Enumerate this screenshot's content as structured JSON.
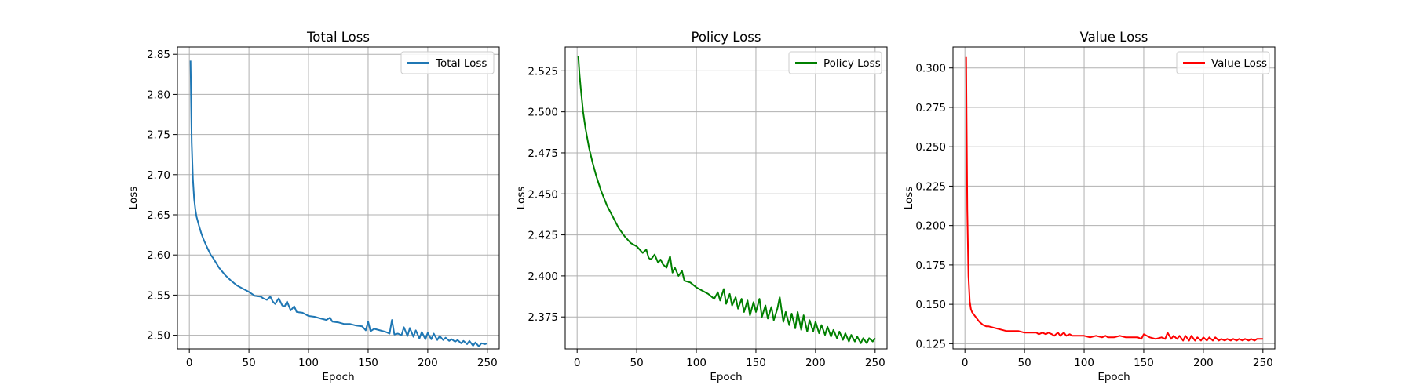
{
  "chart_data": [
    {
      "type": "line",
      "title": "Total Loss",
      "xlabel": "Epoch",
      "ylabel": "Loss",
      "xlim": [
        -10,
        260
      ],
      "ylim": [
        2.483,
        2.859
      ],
      "xticks": [
        0,
        50,
        100,
        150,
        200,
        250
      ],
      "yticks": [
        2.5,
        2.55,
        2.6,
        2.65,
        2.7,
        2.75,
        2.8,
        2.85
      ],
      "ytick_decimals": 2,
      "grid": true,
      "legend_position": "top-right",
      "series": [
        {
          "name": "Total Loss",
          "color": "#1f77b4",
          "x": [
            1,
            2,
            3,
            4,
            5,
            6,
            8,
            10,
            12,
            15,
            18,
            20,
            25,
            30,
            35,
            40,
            45,
            50,
            55,
            60,
            62,
            65,
            68,
            70,
            72,
            75,
            78,
            80,
            82,
            85,
            88,
            90,
            95,
            100,
            105,
            110,
            115,
            118,
            120,
            125,
            130,
            135,
            140,
            145,
            148,
            150,
            152,
            155,
            160,
            165,
            168,
            170,
            172,
            175,
            178,
            180,
            183,
            185,
            188,
            190,
            193,
            195,
            198,
            200,
            203,
            205,
            208,
            210,
            213,
            215,
            218,
            220,
            223,
            225,
            228,
            230,
            233,
            235,
            238,
            240,
            243,
            245,
            248,
            250
          ],
          "y": [
            2.842,
            2.74,
            2.695,
            2.67,
            2.657,
            2.648,
            2.637,
            2.627,
            2.619,
            2.609,
            2.6,
            2.596,
            2.584,
            2.575,
            2.568,
            2.562,
            2.558,
            2.554,
            2.549,
            2.548,
            2.546,
            2.544,
            2.548,
            2.542,
            2.539,
            2.546,
            2.537,
            2.536,
            2.542,
            2.531,
            2.536,
            2.529,
            2.528,
            2.524,
            2.523,
            2.521,
            2.519,
            2.522,
            2.517,
            2.516,
            2.514,
            2.514,
            2.512,
            2.511,
            2.506,
            2.517,
            2.505,
            2.508,
            2.506,
            2.504,
            2.502,
            2.519,
            2.501,
            2.502,
            2.5,
            2.51,
            2.499,
            2.509,
            2.498,
            2.506,
            2.496,
            2.504,
            2.495,
            2.503,
            2.495,
            2.502,
            2.494,
            2.499,
            2.494,
            2.497,
            2.493,
            2.495,
            2.492,
            2.494,
            2.49,
            2.493,
            2.489,
            2.493,
            2.487,
            2.491,
            2.486,
            2.49,
            2.489,
            2.49
          ]
        }
      ]
    },
    {
      "type": "line",
      "title": "Policy Loss",
      "xlabel": "Epoch",
      "ylabel": "Loss",
      "xlim": [
        -10,
        260
      ],
      "ylim": [
        2.3555,
        2.5395
      ],
      "xticks": [
        0,
        50,
        100,
        150,
        200,
        250
      ],
      "yticks": [
        2.375,
        2.4,
        2.425,
        2.45,
        2.475,
        2.5,
        2.525
      ],
      "ytick_decimals": 3,
      "grid": true,
      "legend_position": "top-right",
      "series": [
        {
          "name": "Policy Loss",
          "color": "#008000",
          "x": [
            1,
            2,
            3,
            5,
            7,
            10,
            13,
            16,
            20,
            25,
            30,
            35,
            40,
            45,
            50,
            55,
            58,
            60,
            62,
            65,
            68,
            70,
            72,
            75,
            78,
            80,
            82,
            85,
            88,
            90,
            95,
            100,
            105,
            110,
            115,
            118,
            120,
            123,
            125,
            128,
            130,
            133,
            135,
            138,
            140,
            143,
            145,
            148,
            150,
            153,
            155,
            158,
            160,
            163,
            165,
            168,
            170,
            173,
            175,
            178,
            180,
            183,
            185,
            188,
            190,
            193,
            195,
            198,
            200,
            203,
            205,
            208,
            210,
            213,
            215,
            218,
            220,
            223,
            225,
            228,
            230,
            233,
            235,
            238,
            240,
            243,
            245,
            248,
            250
          ],
          "y": [
            2.534,
            2.523,
            2.515,
            2.5,
            2.49,
            2.478,
            2.469,
            2.461,
            2.452,
            2.443,
            2.436,
            2.429,
            2.424,
            2.42,
            2.418,
            2.414,
            2.416,
            2.411,
            2.41,
            2.413,
            2.408,
            2.41,
            2.407,
            2.405,
            2.412,
            2.402,
            2.405,
            2.4,
            2.403,
            2.397,
            2.396,
            2.393,
            2.391,
            2.389,
            2.386,
            2.39,
            2.385,
            2.392,
            2.383,
            2.389,
            2.382,
            2.387,
            2.38,
            2.386,
            2.378,
            2.385,
            2.376,
            2.384,
            2.378,
            2.386,
            2.375,
            2.382,
            2.374,
            2.381,
            2.373,
            2.38,
            2.387,
            2.372,
            2.378,
            2.37,
            2.377,
            2.368,
            2.378,
            2.367,
            2.376,
            2.366,
            2.373,
            2.366,
            2.372,
            2.365,
            2.37,
            2.364,
            2.369,
            2.363,
            2.367,
            2.362,
            2.366,
            2.361,
            2.365,
            2.36,
            2.364,
            2.36,
            2.363,
            2.359,
            2.362,
            2.359,
            2.362,
            2.36,
            2.362
          ]
        }
      ]
    },
    {
      "type": "line",
      "title": "Value Loss",
      "xlabel": "Epoch",
      "ylabel": "Loss",
      "xlim": [
        -10,
        260
      ],
      "ylim": [
        0.1217,
        0.3133
      ],
      "xticks": [
        0,
        50,
        100,
        150,
        200,
        250
      ],
      "yticks": [
        0.125,
        0.15,
        0.175,
        0.2,
        0.225,
        0.25,
        0.275,
        0.3
      ],
      "ytick_decimals": 3,
      "grid": true,
      "legend_position": "top-right",
      "series": [
        {
          "name": "Value Loss",
          "color": "#ff0000",
          "x": [
            1,
            2,
            3,
            4,
            5,
            6,
            8,
            10,
            12,
            15,
            18,
            20,
            25,
            30,
            35,
            40,
            45,
            50,
            55,
            60,
            62,
            65,
            68,
            70,
            73,
            75,
            78,
            80,
            83,
            85,
            88,
            90,
            95,
            100,
            105,
            110,
            115,
            118,
            120,
            125,
            130,
            135,
            140,
            145,
            148,
            150,
            155,
            160,
            165,
            168,
            170,
            173,
            175,
            178,
            180,
            183,
            185,
            188,
            190,
            193,
            195,
            198,
            200,
            203,
            205,
            208,
            210,
            213,
            215,
            218,
            220,
            223,
            225,
            228,
            230,
            233,
            235,
            238,
            240,
            243,
            245,
            248,
            250
          ],
          "y": [
            0.307,
            0.21,
            0.168,
            0.152,
            0.147,
            0.145,
            0.143,
            0.141,
            0.139,
            0.137,
            0.136,
            0.136,
            0.135,
            0.134,
            0.133,
            0.133,
            0.133,
            0.132,
            0.132,
            0.132,
            0.131,
            0.132,
            0.131,
            0.132,
            0.131,
            0.13,
            0.132,
            0.13,
            0.132,
            0.13,
            0.131,
            0.13,
            0.13,
            0.13,
            0.129,
            0.13,
            0.129,
            0.13,
            0.129,
            0.129,
            0.13,
            0.129,
            0.129,
            0.129,
            0.128,
            0.131,
            0.129,
            0.128,
            0.129,
            0.128,
            0.132,
            0.128,
            0.13,
            0.128,
            0.13,
            0.127,
            0.13,
            0.127,
            0.13,
            0.127,
            0.129,
            0.127,
            0.129,
            0.127,
            0.129,
            0.127,
            0.129,
            0.127,
            0.128,
            0.127,
            0.128,
            0.127,
            0.128,
            0.127,
            0.128,
            0.127,
            0.128,
            0.127,
            0.128,
            0.127,
            0.128,
            0.128,
            0.128
          ]
        }
      ]
    }
  ]
}
